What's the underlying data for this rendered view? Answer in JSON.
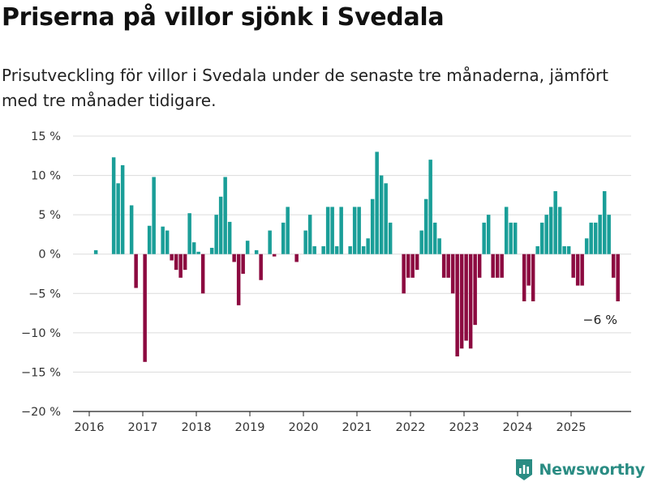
{
  "header": {
    "title": "Priserna på villor sjönk i Svedala",
    "subtitle": "Prisutveckling för villor i Svedala under de senaste tre månaderna, jämfört med tre månader tidigare."
  },
  "brand": {
    "name": "Newsworthy",
    "icon": "newsworthy-logo-icon",
    "color": "#2a8c83"
  },
  "chart_data": {
    "type": "bar",
    "title": "",
    "xlabel": "",
    "ylabel": "",
    "ylim": [
      -20,
      15
    ],
    "yticks": [
      15,
      10,
      5,
      0,
      -5,
      -10,
      -15,
      -20
    ],
    "ytick_labels": [
      "15 %",
      "10 %",
      "5 %",
      "0 %",
      "−5 %",
      "−10 %",
      "−15 %",
      "−20 %"
    ],
    "xticks": [
      "2016",
      "2017",
      "2018",
      "2019",
      "2020",
      "2021",
      "2022",
      "2023",
      "2024",
      "2025"
    ],
    "grid": true,
    "colors": {
      "positive": "#1a9e98",
      "negative": "#8c0a40"
    },
    "start": "2016-01",
    "values": [
      0,
      0.5,
      0,
      0,
      0,
      12.3,
      9,
      11.3,
      0,
      6.2,
      -4.3,
      0,
      -13.7,
      3.6,
      9.8,
      0,
      3.5,
      3,
      -0.8,
      -2,
      -3,
      -2,
      5.2,
      1.5,
      0.3,
      -5,
      0,
      0.8,
      5,
      7.3,
      9.8,
      4.1,
      -1,
      -6.5,
      -2.5,
      1.7,
      0,
      0.5,
      -3.3,
      0,
      3,
      -0.3,
      0,
      4,
      6,
      0,
      -1,
      0,
      3,
      5,
      1,
      0,
      1,
      6,
      6,
      1,
      6,
      0,
      1,
      6,
      6,
      1,
      2,
      7,
      13,
      10,
      9,
      4,
      0,
      0,
      -5,
      -3,
      -3,
      -2,
      3,
      7,
      12,
      4,
      2,
      -3,
      -3,
      -5,
      -13,
      -12,
      -11,
      -12,
      -9,
      -3,
      4,
      5,
      -3,
      -3,
      -3,
      6,
      4,
      4,
      0,
      -6,
      -4,
      -6,
      1,
      4,
      5,
      6,
      8,
      6,
      1,
      1,
      -3,
      -4,
      -4,
      2,
      4,
      4,
      5,
      8,
      5,
      -3,
      -6
    ],
    "annotations": [
      {
        "text": "−6 %",
        "x": "2025-07",
        "y": -6
      }
    ]
  }
}
